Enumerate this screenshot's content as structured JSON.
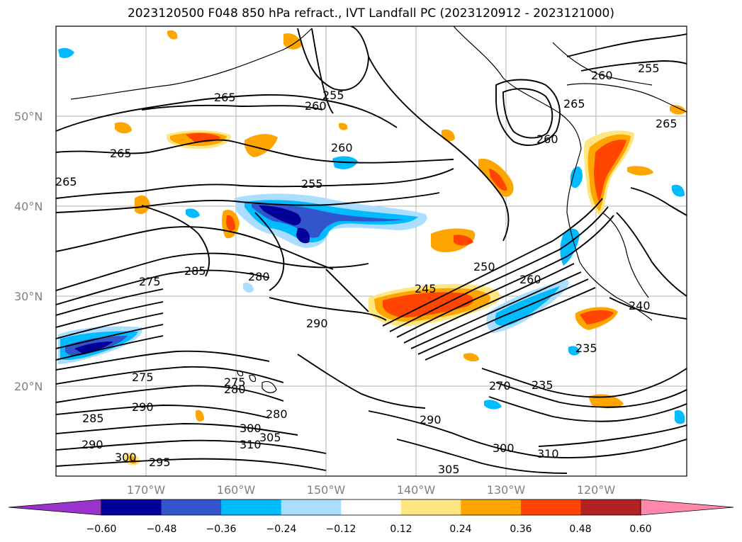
{
  "title": "2023120500 F048 850 hPa refract., IVT Landfall PC (2023120912 - 2023121000)",
  "lat_labels": [
    "50°N",
    "40°N",
    "30°N",
    "20°N"
  ],
  "lon_labels": [
    "170°W",
    "160°W",
    "150°W",
    "140°W",
    "130°W",
    "120°W"
  ],
  "colorbar": {
    "colors": [
      "#9933cc",
      "#000099",
      "#3355cc",
      "#00bbff",
      "#aaddff",
      "#ffffff",
      "#ffe680",
      "#ffa500",
      "#ff4500",
      "#b22222",
      "#ff88aa"
    ],
    "ticks": [
      "−0.60",
      "−0.48",
      "−0.36",
      "−0.24",
      "−0.12",
      "0.12",
      "0.24",
      "0.36",
      "0.48",
      "0.60"
    ]
  },
  "contour_labels": [
    {
      "text": "265"
    },
    {
      "text": "255"
    },
    {
      "text": "260"
    },
    {
      "text": "265"
    },
    {
      "text": "260"
    },
    {
      "text": "255"
    },
    {
      "text": "265"
    },
    {
      "text": "260"
    },
    {
      "text": "265"
    },
    {
      "text": "260"
    },
    {
      "text": "255"
    },
    {
      "text": "265"
    },
    {
      "text": "275"
    },
    {
      "text": "285"
    },
    {
      "text": "280"
    },
    {
      "text": "250"
    },
    {
      "text": "245"
    },
    {
      "text": "260"
    },
    {
      "text": "290"
    },
    {
      "text": "275"
    },
    {
      "text": "280"
    },
    {
      "text": "275"
    },
    {
      "text": "280"
    },
    {
      "text": "290"
    },
    {
      "text": "285"
    },
    {
      "text": "290"
    },
    {
      "text": "300"
    },
    {
      "text": "305"
    },
    {
      "text": "310"
    },
    {
      "text": "300"
    },
    {
      "text": "295"
    },
    {
      "text": "290"
    },
    {
      "text": "300"
    },
    {
      "text": "310"
    },
    {
      "text": "305"
    },
    {
      "text": "235"
    },
    {
      "text": "240"
    },
    {
      "text": "270"
    },
    {
      "text": "235"
    }
  ],
  "colors": {
    "contour": "#000000",
    "coast": "#000000",
    "grid": "#b0b0b0",
    "axis_label": "#808080"
  }
}
